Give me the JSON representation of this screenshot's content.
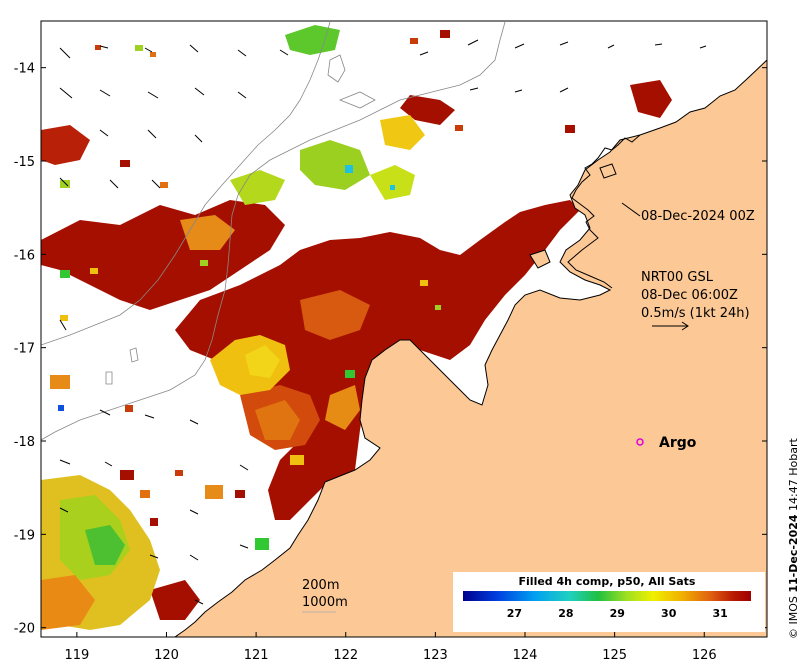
{
  "map": {
    "type": "sea-surface-temperature-map",
    "x_axis": {
      "ticks": [
        "119",
        "120",
        "121",
        "122",
        "123",
        "124",
        "125",
        "126"
      ],
      "range": [
        118.6,
        126.7
      ]
    },
    "y_axis": {
      "ticks": [
        "-14",
        "-15",
        "-16",
        "-17",
        "-18",
        "-19",
        "-20"
      ],
      "range": [
        -20.1,
        -13.5
      ]
    },
    "annotations": {
      "timestamp": "08-Dec-2024 00Z",
      "current_product": "NRT00 GSL",
      "current_time": "08-Dec 06:00Z",
      "vector_scale": "0.5m/s (1kt 24h)",
      "argo_label": "Argo",
      "contour_200": "200m",
      "contour_1000": "1000m"
    },
    "argo_float": {
      "lon": 125.3,
      "lat": -18.0
    },
    "credit": {
      "prefix": "© IMOS",
      "date": "11-Dec-2024",
      "suffix": "14:47 Hobart"
    },
    "colorbar": {
      "title": "Filled 4h comp, p50, All Sats",
      "ticks": [
        "27",
        "28",
        "29",
        "30",
        "31"
      ],
      "range": [
        26.0,
        31.6
      ]
    },
    "colors": {
      "land": "#fcc896",
      "hot": "#a50f00",
      "warm": "#c83c0a",
      "orange": "#e87a10",
      "yellow": "#f2c80c",
      "lime": "#b4dc14",
      "green": "#32c832",
      "cyan": "#20c0e0",
      "blue": "#1050e0",
      "argo": "#e000e0"
    }
  }
}
